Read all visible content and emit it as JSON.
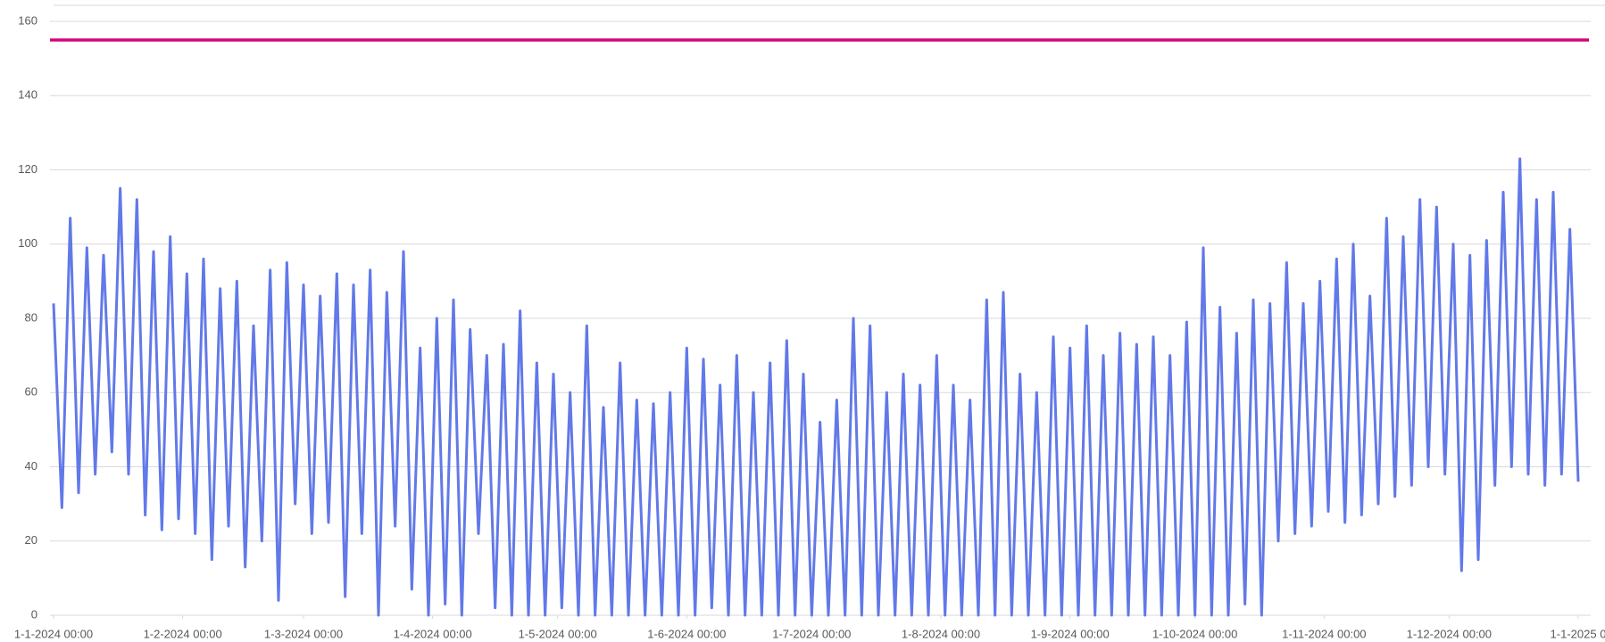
{
  "chart_data": {
    "type": "line",
    "x": [
      "2024-01-01T00:00",
      "2024-01-03T00:00",
      "2024-01-05T00:00",
      "2024-01-07T00:00",
      "2024-01-09T00:00",
      "2024-01-11T00:00",
      "2024-01-13T00:00",
      "2024-01-15T00:00",
      "2024-01-17T00:00",
      "2024-01-19T00:00",
      "2024-01-21T00:00",
      "2024-01-23T00:00",
      "2024-01-25T00:00",
      "2024-01-27T00:00",
      "2024-01-29T00:00",
      "2024-01-31T00:00",
      "2024-02-02T00:00",
      "2024-02-04T00:00",
      "2024-02-06T00:00",
      "2024-02-08T00:00",
      "2024-02-10T00:00",
      "2024-02-12T00:00",
      "2024-02-14T00:00",
      "2024-02-16T00:00",
      "2024-02-18T00:00",
      "2024-02-20T00:00",
      "2024-02-22T00:00",
      "2024-02-24T00:00",
      "2024-02-26T00:00",
      "2024-02-28T00:00",
      "2024-03-01T00:00",
      "2024-03-03T00:00",
      "2024-03-05T00:00",
      "2024-03-07T00:00",
      "2024-03-09T00:00",
      "2024-03-11T00:00",
      "2024-03-13T00:00",
      "2024-03-15T00:00",
      "2024-03-17T00:00",
      "2024-03-19T00:00",
      "2024-03-21T00:00",
      "2024-03-23T00:00",
      "2024-03-25T00:00",
      "2024-03-27T00:00",
      "2024-03-29T00:00",
      "2024-03-31T00:00",
      "2024-04-02T00:00",
      "2024-04-04T00:00",
      "2024-04-06T00:00",
      "2024-04-08T00:00",
      "2024-04-10T00:00",
      "2024-04-12T00:00",
      "2024-04-14T00:00",
      "2024-04-16T00:00",
      "2024-04-18T00:00",
      "2024-04-20T00:00",
      "2024-04-22T00:00",
      "2024-04-24T00:00",
      "2024-04-26T00:00",
      "2024-04-28T00:00",
      "2024-04-30T00:00",
      "2024-05-02T00:00",
      "2024-05-04T00:00",
      "2024-05-06T00:00",
      "2024-05-08T00:00",
      "2024-05-10T00:00",
      "2024-05-12T00:00",
      "2024-05-14T00:00",
      "2024-05-16T00:00",
      "2024-05-18T00:00",
      "2024-05-20T00:00",
      "2024-05-22T00:00",
      "2024-05-24T00:00",
      "2024-05-26T00:00",
      "2024-05-28T00:00",
      "2024-05-30T00:00",
      "2024-06-01T00:00",
      "2024-06-03T00:00",
      "2024-06-05T00:00",
      "2024-06-07T00:00",
      "2024-06-09T00:00",
      "2024-06-11T00:00",
      "2024-06-13T00:00",
      "2024-06-15T00:00",
      "2024-06-17T00:00",
      "2024-06-19T00:00",
      "2024-06-21T00:00",
      "2024-06-23T00:00",
      "2024-06-25T00:00",
      "2024-06-27T00:00",
      "2024-06-29T00:00",
      "2024-07-01T00:00",
      "2024-07-03T00:00",
      "2024-07-05T00:00",
      "2024-07-07T00:00",
      "2024-07-09T00:00",
      "2024-07-11T00:00",
      "2024-07-13T00:00",
      "2024-07-15T00:00",
      "2024-07-17T00:00",
      "2024-07-19T00:00",
      "2024-07-21T00:00",
      "2024-07-23T00:00",
      "2024-07-25T00:00",
      "2024-07-27T00:00",
      "2024-07-29T00:00",
      "2024-07-31T00:00",
      "2024-08-02T00:00",
      "2024-08-04T00:00",
      "2024-08-06T00:00",
      "2024-08-08T00:00",
      "2024-08-10T00:00",
      "2024-08-12T00:00",
      "2024-08-14T00:00",
      "2024-08-16T00:00",
      "2024-08-18T00:00",
      "2024-08-20T00:00",
      "2024-08-22T00:00",
      "2024-08-24T00:00",
      "2024-08-26T00:00",
      "2024-08-28T00:00",
      "2024-08-30T00:00",
      "2024-09-01T00:00",
      "2024-09-03T00:00",
      "2024-09-05T00:00",
      "2024-09-07T00:00",
      "2024-09-09T00:00",
      "2024-09-11T00:00",
      "2024-09-13T00:00",
      "2024-09-15T00:00",
      "2024-09-17T00:00",
      "2024-09-19T00:00",
      "2024-09-21T00:00",
      "2024-09-23T00:00",
      "2024-09-25T00:00",
      "2024-09-27T00:00",
      "2024-09-29T00:00",
      "2024-10-01T00:00",
      "2024-10-03T00:00",
      "2024-10-05T00:00",
      "2024-10-07T00:00",
      "2024-10-09T00:00",
      "2024-10-11T00:00",
      "2024-10-13T00:00",
      "2024-10-15T00:00",
      "2024-10-17T00:00",
      "2024-10-19T00:00",
      "2024-10-21T00:00",
      "2024-10-23T00:00",
      "2024-10-25T00:00",
      "2024-10-27T00:00",
      "2024-10-29T00:00",
      "2024-10-31T00:00",
      "2024-11-02T00:00",
      "2024-11-04T00:00",
      "2024-11-06T00:00",
      "2024-11-08T00:00",
      "2024-11-10T00:00",
      "2024-11-12T00:00",
      "2024-11-14T00:00",
      "2024-11-16T00:00",
      "2024-11-18T00:00",
      "2024-11-20T00:00",
      "2024-11-22T00:00",
      "2024-11-24T00:00",
      "2024-11-26T00:00",
      "2024-11-28T00:00",
      "2024-11-30T00:00",
      "2024-12-02T00:00",
      "2024-12-04T00:00",
      "2024-12-06T00:00",
      "2024-12-08T00:00",
      "2024-12-10T00:00",
      "2024-12-12T00:00",
      "2024-12-14T00:00",
      "2024-12-16T00:00",
      "2024-12-18T00:00",
      "2024-12-20T00:00",
      "2024-12-22T00:00",
      "2024-12-24T00:00",
      "2024-12-26T00:00",
      "2024-12-28T00:00",
      "2024-12-30T00:00",
      "2025-01-01T00:00"
    ],
    "series": [
      {
        "color": "#6279e8",
        "values": [
          84,
          29,
          107,
          33,
          99,
          38,
          97,
          44,
          115,
          38,
          112,
          27,
          98,
          23,
          102,
          26,
          92,
          22,
          96,
          15,
          88,
          24,
          90,
          13,
          78,
          20,
          93,
          4,
          95,
          30,
          89,
          22,
          86,
          25,
          92,
          5,
          89,
          22,
          93,
          0,
          87,
          24,
          98,
          7,
          72,
          0,
          80,
          3,
          85,
          0,
          77,
          22,
          70,
          2,
          73,
          0,
          82,
          0,
          68,
          0,
          65,
          2,
          60,
          0,
          78,
          0,
          56,
          0,
          68,
          0,
          58,
          0,
          57,
          0,
          60,
          0,
          72,
          0,
          69,
          2,
          62,
          0,
          70,
          0,
          60,
          0,
          68,
          0,
          74,
          0,
          65,
          0,
          52,
          0,
          58,
          0,
          80,
          0,
          78,
          0,
          60,
          0,
          65,
          0,
          62,
          0,
          70,
          0,
          62,
          0,
          58,
          0,
          85,
          0,
          87,
          0,
          65,
          0,
          60,
          0,
          75,
          0,
          72,
          0,
          78,
          0,
          70,
          0,
          76,
          0,
          73,
          0,
          75,
          0,
          70,
          0,
          79,
          0,
          99,
          0,
          83,
          0,
          76,
          3,
          85,
          0,
          84,
          20,
          95,
          22,
          84,
          24,
          90,
          28,
          96,
          25,
          100,
          27,
          86,
          30,
          107,
          32,
          102,
          35,
          112,
          40,
          110,
          38,
          100,
          12,
          97,
          15,
          101,
          35,
          114,
          40,
          123,
          38,
          112,
          35,
          114,
          38,
          104,
          36
        ]
      }
    ],
    "reference_line": {
      "value": 155,
      "color": "#d4077a"
    },
    "xlim": [
      "2024-01-01T00:00",
      "2025-01-01T00:00"
    ],
    "xticks": [
      {
        "value": "2024-01-01T00:00",
        "label": "1-1-2024 00:00"
      },
      {
        "value": "2024-02-01T00:00",
        "label": "1-2-2024 00:00"
      },
      {
        "value": "2024-03-01T00:00",
        "label": "1-3-2024 00:00"
      },
      {
        "value": "2024-04-01T00:00",
        "label": "1-4-2024 00:00"
      },
      {
        "value": "2024-05-01T00:00",
        "label": "1-5-2024 00:00"
      },
      {
        "value": "2024-06-01T00:00",
        "label": "1-6-2024 00:00"
      },
      {
        "value": "2024-07-01T00:00",
        "label": "1-7-2024 00:00"
      },
      {
        "value": "2024-08-01T00:00",
        "label": "1-8-2024 00:00"
      },
      {
        "value": "2024-09-01T00:00",
        "label": "1-9-2024 00:00"
      },
      {
        "value": "2024-10-01T00:00",
        "label": "1-10-2024 00:00"
      },
      {
        "value": "2024-11-01T00:00",
        "label": "1-11-2024 00:00"
      },
      {
        "value": "2024-12-01T00:00",
        "label": "1-12-2024 00:00"
      },
      {
        "value": "2025-01-01T00:00",
        "label": "1-1-2025 0"
      }
    ],
    "ylim": [
      0,
      160
    ],
    "yticks": [
      0,
      20,
      40,
      60,
      80,
      100,
      120,
      140,
      160
    ],
    "grid": true
  }
}
